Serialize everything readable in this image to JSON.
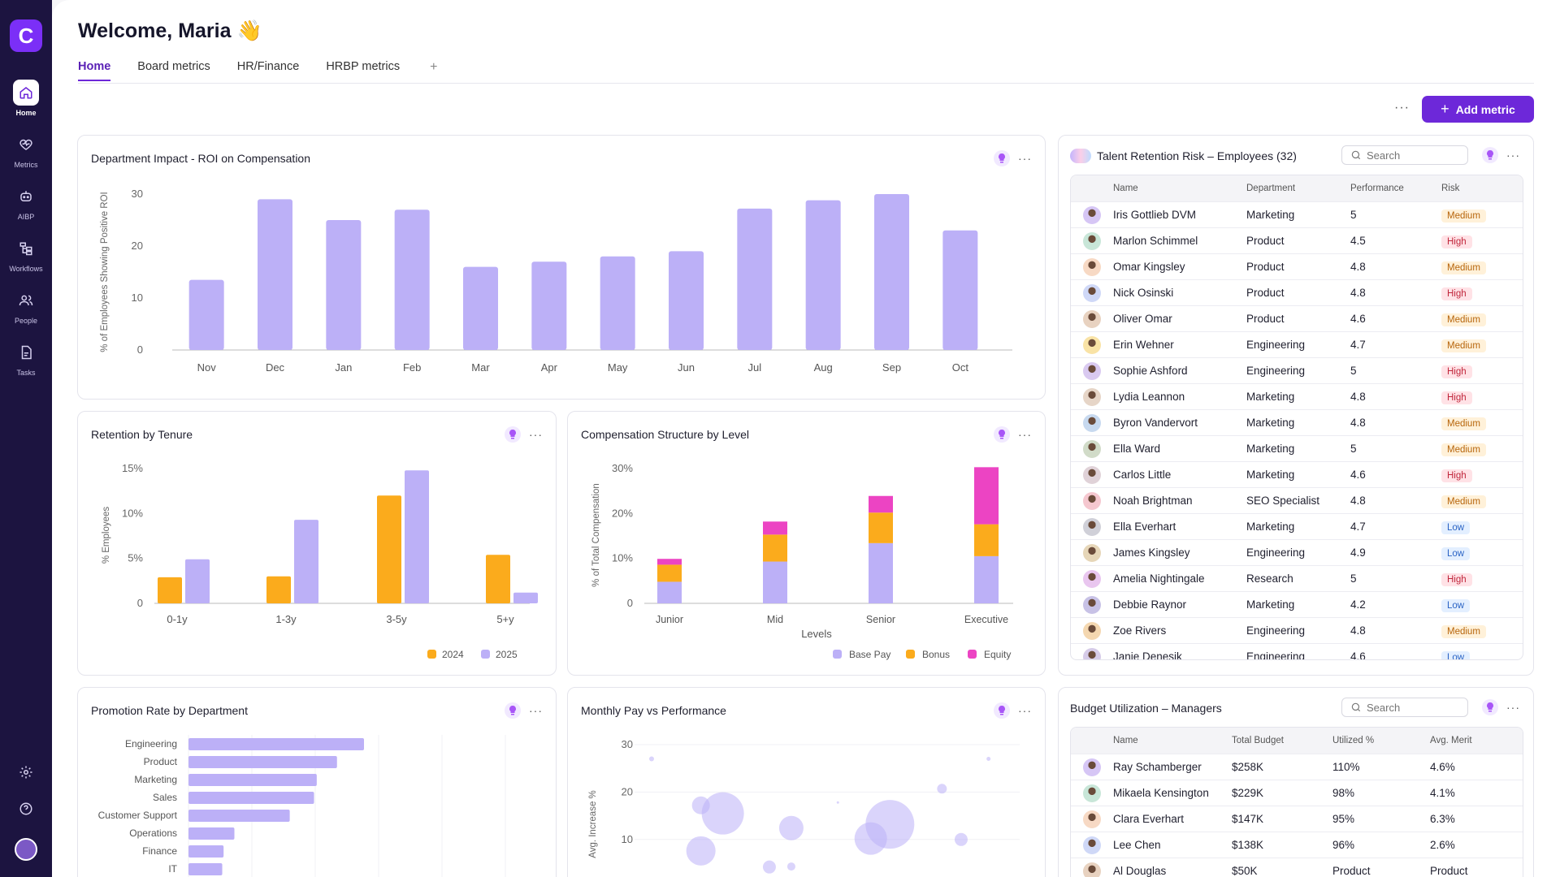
{
  "app": {
    "logo_letter": "C"
  },
  "nav": [
    {
      "label": "Home",
      "icon": "home-icon",
      "active": true
    },
    {
      "label": "Metrics",
      "icon": "heart-pulse-icon"
    },
    {
      "label": "AIBP",
      "icon": "robot-icon"
    },
    {
      "label": "Workflows",
      "icon": "workflow-icon"
    },
    {
      "label": "People",
      "icon": "people-icon"
    },
    {
      "label": "Tasks",
      "icon": "document-icon"
    }
  ],
  "header": {
    "welcome": "Welcome, Maria 👋"
  },
  "tabs": [
    "Home",
    "Board metrics",
    "HR/Finance",
    "HRBP metrics"
  ],
  "tab_add": "+",
  "actions": {
    "more": "···",
    "add_metric": "Add metric"
  },
  "cards": {
    "roi_title": "Department Impact - ROI on Compensation",
    "tenure_title": "Retention by Tenure",
    "comp_title": "Compensation Structure by Level",
    "promo_title": "Promotion Rate by Department",
    "pay_title": "Monthly Pay vs Performance"
  },
  "retention": {
    "title": "Talent Retention Risk – Employees (32)",
    "search_placeholder": "Search",
    "columns": [
      "Name",
      "Department",
      "Performance",
      "Risk"
    ],
    "rows": [
      [
        "Iris Gottlieb DVM",
        "Marketing",
        "5",
        "Medium"
      ],
      [
        "Marlon Schimmel",
        "Product",
        "4.5",
        "High"
      ],
      [
        "Omar Kingsley",
        "Product",
        "4.8",
        "Medium"
      ],
      [
        "Nick Osinski",
        "Product",
        "4.8",
        "High"
      ],
      [
        "Oliver Omar",
        "Product",
        "4.6",
        "Medium"
      ],
      [
        "Erin Wehner",
        "Engineering",
        "4.7",
        "Medium"
      ],
      [
        "Sophie Ashford",
        "Engineering",
        "5",
        "High"
      ],
      [
        "Lydia Leannon",
        "Marketing",
        "4.8",
        "High"
      ],
      [
        "Byron Vandervort",
        "Marketing",
        "4.8",
        "Medium"
      ],
      [
        "Ella Ward",
        "Marketing",
        "5",
        "Medium"
      ],
      [
        "Carlos Little",
        "Marketing",
        "4.6",
        "High"
      ],
      [
        "Noah Brightman",
        "SEO Specialist",
        "4.8",
        "Medium"
      ],
      [
        "Ella Everhart",
        "Marketing",
        "4.7",
        "Low"
      ],
      [
        "James Kingsley",
        "Engineering",
        "4.9",
        "Low"
      ],
      [
        "Amelia Nightingale",
        "Research",
        "5",
        "High"
      ],
      [
        "Debbie Raynor",
        "Marketing",
        "4.2",
        "Low"
      ],
      [
        "Zoe Rivers",
        "Engineering",
        "4.8",
        "Medium"
      ],
      [
        "Janie Denesik",
        "Engineering",
        "4.6",
        "Low"
      ]
    ]
  },
  "budget": {
    "title": "Budget Utilization – Managers",
    "search_placeholder": "Search",
    "columns": [
      "Name",
      "Total Budget",
      "Utilized %",
      "Avg. Merit"
    ],
    "rows": [
      [
        "Ray Schamberger",
        "$258K",
        "110%",
        "4.6%"
      ],
      [
        "Mikaela Kensington",
        "$229K",
        "98%",
        "4.1%"
      ],
      [
        "Clara Everhart",
        "$147K",
        "95%",
        "6.3%"
      ],
      [
        "Lee Chen",
        "$138K",
        "96%",
        "2.6%"
      ],
      [
        "Al Douglas",
        "$50K",
        "Product",
        "Product"
      ]
    ]
  },
  "colors": {
    "accent": "#6d28d9",
    "bar": "#bcb0f7",
    "y2024": "#fbab1c",
    "bonus": "#fbab1c",
    "equity": "#ec44c3",
    "sidebar": "#1c1440"
  },
  "chart_data": [
    {
      "type": "bar",
      "title": "Department Impact - ROI on Compensation",
      "categories": [
        "Nov",
        "Dec",
        "Jan",
        "Feb",
        "Mar",
        "Apr",
        "May",
        "Jun",
        "Jul",
        "Aug",
        "Sep",
        "Oct"
      ],
      "values": [
        13.5,
        29,
        25,
        27,
        16,
        17,
        18,
        19,
        27.2,
        28.8,
        30,
        23
      ],
      "ylabel": "% of Employees Showing Positive ROI",
      "yticks": [
        "0",
        "10",
        "20",
        "30"
      ],
      "ylim": [
        0,
        30
      ]
    },
    {
      "type": "bar",
      "title": "Retention by Tenure",
      "categories": [
        "0-1y",
        "1-3y",
        "3-5y",
        "5+y"
      ],
      "series": [
        {
          "name": "2024",
          "values": [
            2.9,
            3,
            12,
            5.4
          ]
        },
        {
          "name": "2025",
          "values": [
            4.9,
            9.3,
            14.8,
            1.2
          ]
        }
      ],
      "ylabel": "% Employees",
      "yticks": [
        "0",
        "5%",
        "10%",
        "15%"
      ],
      "ylim": [
        0,
        15
      ],
      "legend": "bottom-right"
    },
    {
      "type": "bar",
      "stacked": true,
      "title": "Compensation Structure by Level",
      "categories": [
        "Junior",
        "Mid",
        "Senior",
        "Executive"
      ],
      "series": [
        {
          "name": "Base Pay",
          "values": [
            4.8,
            9.3,
            13.4,
            10.5
          ]
        },
        {
          "name": "Bonus",
          "values": [
            3.8,
            6,
            6.8,
            7.1
          ]
        },
        {
          "name": "Equity",
          "values": [
            1.3,
            2.9,
            3.7,
            12.7
          ]
        }
      ],
      "xlabel": "Levels",
      "ylabel": "% of Total Compensation",
      "yticks": [
        "0",
        "10%",
        "20%",
        "30%"
      ],
      "ylim": [
        0,
        30
      ],
      "legend": "bottom-right"
    },
    {
      "type": "bar",
      "orientation": "horizontal",
      "title": "Promotion Rate by Department",
      "categories": [
        "Engineering",
        "Product",
        "Marketing",
        "Sales",
        "Customer Support",
        "Operations",
        "Finance",
        "IT"
      ],
      "values": [
        13,
        11,
        9.5,
        9.3,
        7.5,
        3.4,
        2.6,
        2.5
      ]
    },
    {
      "type": "scatter",
      "title": "Monthly Pay vs Performance",
      "ylabel": "Avg. Increase %",
      "yticks": [
        "10",
        "20",
        "30"
      ],
      "points": [
        {
          "x": 0.8,
          "y": 27,
          "r": 3
        },
        {
          "x": 2.6,
          "y": 17.2,
          "r": 11
        },
        {
          "x": 3.4,
          "y": 15.5,
          "r": 26
        },
        {
          "x": 2.6,
          "y": 7.6,
          "r": 18
        },
        {
          "x": 5.9,
          "y": 12.4,
          "r": 15
        },
        {
          "x": 7.6,
          "y": 17.8,
          "r": 1.5
        },
        {
          "x": 9.5,
          "y": 13.2,
          "r": 30
        },
        {
          "x": 8.8,
          "y": 10.2,
          "r": 20
        },
        {
          "x": 11.4,
          "y": 20.7,
          "r": 6
        },
        {
          "x": 12.1,
          "y": 10,
          "r": 8
        },
        {
          "x": 13.1,
          "y": 27,
          "r": 2.5
        },
        {
          "x": 5.1,
          "y": 4.2,
          "r": 8
        },
        {
          "x": 5.9,
          "y": 4.3,
          "r": 5
        }
      ],
      "xlim": [
        0,
        14
      ],
      "ylim": [
        5,
        30
      ]
    }
  ]
}
